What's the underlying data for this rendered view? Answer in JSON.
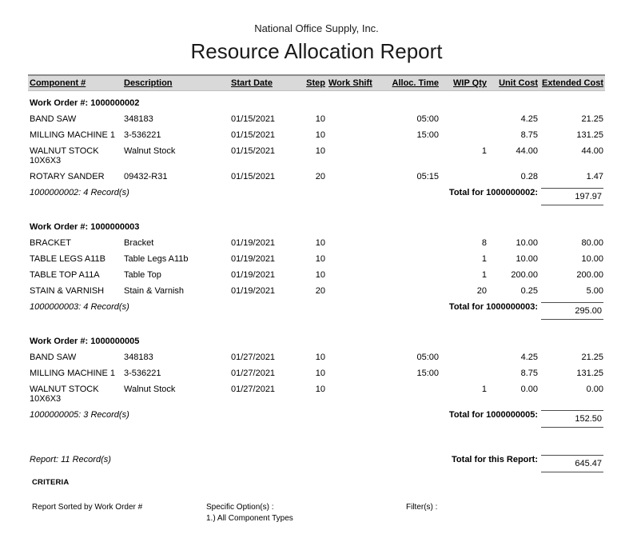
{
  "report": {
    "company": "National Office Supply, Inc.",
    "title": "Resource Allocation Report",
    "columns": [
      "Component #",
      "Description",
      "Start Date",
      "Step",
      "Work Shift",
      "Alloc. Time",
      "WIP Qty",
      "Unit Cost",
      "Extended Cost"
    ],
    "groups": [
      {
        "work_order_label": "Work Order #: 1000000002",
        "rows": [
          [
            "BAND SAW",
            "348183",
            "01/15/2021",
            "10",
            "",
            "05:00",
            "",
            "4.25",
            "21.25"
          ],
          [
            "MILLING MACHINE 1",
            "3-536221",
            "01/15/2021",
            "10",
            "",
            "15:00",
            "",
            "8.75",
            "131.25"
          ],
          [
            "WALNUT STOCK 10X6X3",
            "Walnut Stock",
            "01/15/2021",
            "10",
            "",
            "",
            "1",
            "44.00",
            "44.00"
          ],
          [
            "ROTARY SANDER",
            "09432-R31",
            "01/15/2021",
            "20",
            "",
            "05:15",
            "",
            "0.28",
            "1.47"
          ]
        ],
        "record_count_label": "1000000002: 4 Record(s)",
        "total_label": "Total for 1000000002:",
        "total_value": "197.97"
      },
      {
        "work_order_label": "Work Order #: 1000000003",
        "rows": [
          [
            "BRACKET",
            "Bracket",
            "01/19/2021",
            "10",
            "",
            "",
            "8",
            "10.00",
            "80.00"
          ],
          [
            "TABLE LEGS A11B",
            "Table Legs A11b",
            "01/19/2021",
            "10",
            "",
            "",
            "1",
            "10.00",
            "10.00"
          ],
          [
            "TABLE TOP A11A",
            "Table Top",
            "01/19/2021",
            "10",
            "",
            "",
            "1",
            "200.00",
            "200.00"
          ],
          [
            "STAIN & VARNISH",
            "Stain & Varnish",
            "01/19/2021",
            "20",
            "",
            "",
            "20",
            "0.25",
            "5.00"
          ]
        ],
        "record_count_label": "1000000003: 4 Record(s)",
        "total_label": "Total for 1000000003:",
        "total_value": "295.00"
      },
      {
        "work_order_label": "Work Order #: 1000000005",
        "rows": [
          [
            "BAND SAW",
            "348183",
            "01/27/2021",
            "10",
            "",
            "05:00",
            "",
            "4.25",
            "21.25"
          ],
          [
            "MILLING MACHINE 1",
            "3-536221",
            "01/27/2021",
            "10",
            "",
            "15:00",
            "",
            "8.75",
            "131.25"
          ],
          [
            "WALNUT STOCK 10X6X3",
            "Walnut Stock",
            "01/27/2021",
            "10",
            "",
            "",
            "1",
            "0.00",
            "0.00"
          ]
        ],
        "record_count_label": "1000000005: 3 Record(s)",
        "total_label": "Total for 1000000005:",
        "total_value": "152.50"
      }
    ],
    "summary": {
      "record_count_label": "Report: 11 Record(s)",
      "total_label": "Total for this Report:",
      "total_value": "645.47"
    },
    "criteria": {
      "heading": "CRITERIA",
      "sorted_by": "Report Sorted by Work Order #",
      "specific_options_label": "Specific Option(s) :",
      "specific_options_value": "1.) All Component Types",
      "filters_label": "Filter(s) :"
    }
  }
}
